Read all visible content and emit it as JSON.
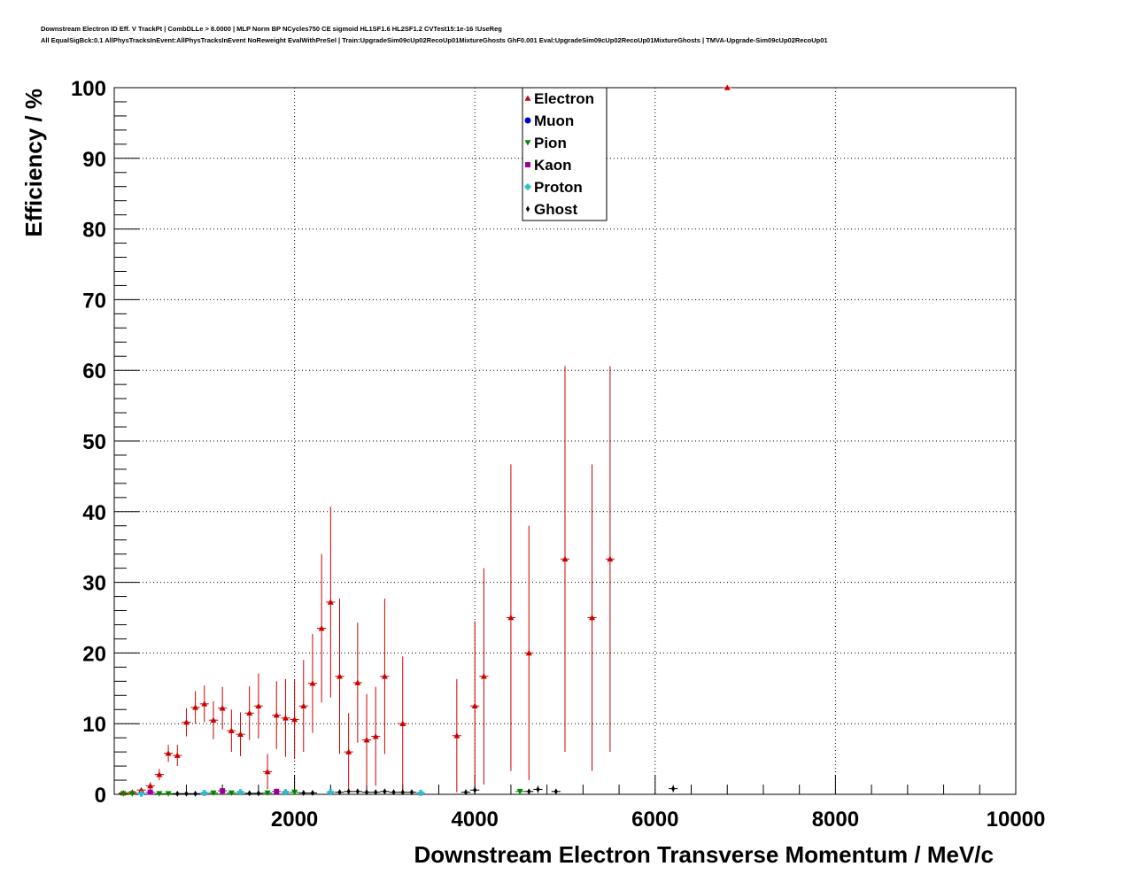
{
  "chart_data": {
    "type": "scatter",
    "title_lines": [
      "Downstream Electron ID Eff. V TrackPt | CombDLLe > 8.0000 | MLP Norm BP NCycles750 CE sigmoid HL1SF1.6 HL2SF1.2 CVTest15:1e-16 !UseReg",
      "All EqualSigBck:0.1 AllPhysTracksInEvent:AllPhysTracksInEvent NoReweight EvalWithPreSel | Train:UpgradeSim09cUp02RecoUp01MixtureGhosts GhF0.001 Eval:UpgradeSim09cUp02RecoUp01MixtureGhosts | TMVA-Upgrade-Sim09cUp02RecoUp01"
    ],
    "xlabel": "Downstream Electron Transverse Momentum / MeV/c",
    "ylabel": "Efficiency / %",
    "xlim": [
      0,
      10000
    ],
    "ylim": [
      0,
      100
    ],
    "x_ticks": [
      2000,
      4000,
      6000,
      8000,
      10000
    ],
    "y_ticks": [
      0,
      10,
      20,
      30,
      40,
      50,
      60,
      70,
      80,
      90,
      100
    ],
    "grid": true,
    "legend_position": "top-center",
    "series": [
      {
        "name": "Electron",
        "color": "#cc0000",
        "marker": "triangle-up",
        "points": [
          {
            "x": 100,
            "y": 0.2,
            "err": 0.2
          },
          {
            "x": 200,
            "y": 0.3,
            "err": 0.3
          },
          {
            "x": 300,
            "y": 0.6,
            "err": 0.3
          },
          {
            "x": 400,
            "y": 1.2,
            "err": 0.5
          },
          {
            "x": 500,
            "y": 2.8,
            "err": 0.8
          },
          {
            "x": 600,
            "y": 5.8,
            "err": 1.2
          },
          {
            "x": 700,
            "y": 5.5,
            "err": 1.5
          },
          {
            "x": 800,
            "y": 10.2,
            "err": 2.0
          },
          {
            "x": 900,
            "y": 12.3,
            "err": 2.3
          },
          {
            "x": 1000,
            "y": 12.8,
            "err": 2.6
          },
          {
            "x": 1100,
            "y": 10.5,
            "err": 2.7
          },
          {
            "x": 1200,
            "y": 12.2,
            "err": 3.0
          },
          {
            "x": 1300,
            "y": 9.0,
            "err": 3.0
          },
          {
            "x": 1400,
            "y": 8.5,
            "err": 3.1
          },
          {
            "x": 1500,
            "y": 11.5,
            "err": 3.8
          },
          {
            "x": 1600,
            "y": 12.5,
            "err": 4.6
          },
          {
            "x": 1700,
            "y": 3.2,
            "err": 2.5
          },
          {
            "x": 1800,
            "y": 11.2,
            "err": 4.8
          },
          {
            "x": 1900,
            "y": 10.8,
            "err": 5.5
          },
          {
            "x": 2000,
            "y": 10.6,
            "err": 5.6
          },
          {
            "x": 2100,
            "y": 12.5,
            "err": 6.5
          },
          {
            "x": 2200,
            "y": 15.7,
            "err": 7.0
          },
          {
            "x": 2300,
            "y": 23.5,
            "err": 10.5
          },
          {
            "x": 2400,
            "y": 27.2,
            "err": 13.5
          },
          {
            "x": 2500,
            "y": 16.7,
            "err": 11.0
          },
          {
            "x": 2600,
            "y": 6.0,
            "err": 5.5
          },
          {
            "x": 2700,
            "y": 15.8,
            "err": 8.5
          },
          {
            "x": 2800,
            "y": 7.7,
            "err": 6.5
          },
          {
            "x": 2900,
            "y": 8.2,
            "err": 7.0
          },
          {
            "x": 3000,
            "y": 16.7,
            "err": 11.0
          },
          {
            "x": 3200,
            "y": 10.0,
            "err": 9.5
          },
          {
            "x": 3800,
            "y": 8.3,
            "err": 8.0
          },
          {
            "x": 4000,
            "y": 12.5,
            "err": 12.0
          },
          {
            "x": 4100,
            "y": 16.7,
            "err": 15.3
          },
          {
            "x": 4400,
            "y": 25.0,
            "err": 21.7
          },
          {
            "x": 4600,
            "y": 20.0,
            "err": 18.0
          },
          {
            "x": 5000,
            "y": 33.3,
            "err": 27.3
          },
          {
            "x": 5300,
            "y": 25.0,
            "err": 21.7
          },
          {
            "x": 5500,
            "y": 33.3,
            "err": 27.3
          },
          {
            "x": 6800,
            "y": 100.0,
            "err": 0
          }
        ]
      },
      {
        "name": "Muon",
        "color": "#0000cc",
        "marker": "circle",
        "points": []
      },
      {
        "name": "Pion",
        "color": "#008800",
        "marker": "triangle-down",
        "points": [
          {
            "x": 100,
            "y": 0.1,
            "err": 0.1
          },
          {
            "x": 200,
            "y": 0.1,
            "err": 0.1
          },
          {
            "x": 500,
            "y": 0.1,
            "err": 0.1
          },
          {
            "x": 600,
            "y": 0.1,
            "err": 0.1
          },
          {
            "x": 1100,
            "y": 0.2,
            "err": 0.1
          },
          {
            "x": 1300,
            "y": 0.2,
            "err": 0.1
          },
          {
            "x": 1700,
            "y": 0.2,
            "err": 0.2
          },
          {
            "x": 2000,
            "y": 0.3,
            "err": 0.3
          },
          {
            "x": 4500,
            "y": 0.4,
            "err": 0.4
          }
        ]
      },
      {
        "name": "Kaon",
        "color": "#990099",
        "marker": "square",
        "points": [
          {
            "x": 400,
            "y": 0.3,
            "err": 0.3
          },
          {
            "x": 1200,
            "y": 0.5,
            "err": 0.4
          },
          {
            "x": 1800,
            "y": 0.4,
            "err": 0.4
          }
        ]
      },
      {
        "name": "Proton",
        "color": "#33bbcc",
        "marker": "cross",
        "points": [
          {
            "x": 300,
            "y": 0.1,
            "err": 0.1
          },
          {
            "x": 1000,
            "y": 0.2,
            "err": 0.1
          },
          {
            "x": 1400,
            "y": 0.3,
            "err": 0.2
          },
          {
            "x": 1900,
            "y": 0.3,
            "err": 0.3
          },
          {
            "x": 2400,
            "y": 0.3,
            "err": 0.3
          },
          {
            "x": 3400,
            "y": 0.2,
            "err": 0.2
          }
        ]
      },
      {
        "name": "Ghost",
        "color": "#000000",
        "marker": "diamond",
        "points": [
          {
            "x": 700,
            "y": 0.1,
            "err": 0.05
          },
          {
            "x": 800,
            "y": 0.1,
            "err": 0.05
          },
          {
            "x": 900,
            "y": 0.1,
            "err": 0.05
          },
          {
            "x": 1500,
            "y": 0.15,
            "err": 0.1
          },
          {
            "x": 1600,
            "y": 0.15,
            "err": 0.1
          },
          {
            "x": 2100,
            "y": 0.2,
            "err": 0.1
          },
          {
            "x": 2200,
            "y": 0.2,
            "err": 0.1
          },
          {
            "x": 2500,
            "y": 0.3,
            "err": 0.2
          },
          {
            "x": 2600,
            "y": 0.4,
            "err": 0.2
          },
          {
            "x": 2700,
            "y": 0.4,
            "err": 0.2
          },
          {
            "x": 2800,
            "y": 0.3,
            "err": 0.2
          },
          {
            "x": 2900,
            "y": 0.3,
            "err": 0.2
          },
          {
            "x": 3000,
            "y": 0.4,
            "err": 0.3
          },
          {
            "x": 3100,
            "y": 0.3,
            "err": 0.3
          },
          {
            "x": 3200,
            "y": 0.3,
            "err": 0.3
          },
          {
            "x": 3300,
            "y": 0.3,
            "err": 0.3
          },
          {
            "x": 3900,
            "y": 0.3,
            "err": 0.3
          },
          {
            "x": 4000,
            "y": 0.6,
            "err": 0.5
          },
          {
            "x": 4600,
            "y": 0.4,
            "err": 0.3
          },
          {
            "x": 4700,
            "y": 0.7,
            "err": 0.5
          },
          {
            "x": 4900,
            "y": 0.4,
            "err": 0.3
          },
          {
            "x": 6200,
            "y": 0.8,
            "err": 0.5
          }
        ]
      }
    ]
  }
}
